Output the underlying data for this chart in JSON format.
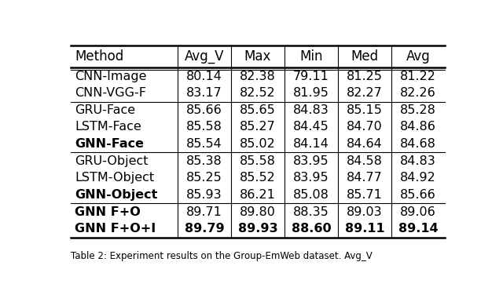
{
  "columns": [
    "Method",
    "Avg_V",
    "Max",
    "Min",
    "Med",
    "Avg"
  ],
  "rows": [
    {
      "method": "CNN-Image",
      "vals": [
        "80.14",
        "82.38",
        "79.11",
        "81.25",
        "81.22"
      ],
      "bold_method": false,
      "bold_vals": false
    },
    {
      "method": "CNN-VGG-F",
      "vals": [
        "83.17",
        "82.52",
        "81.95",
        "82.27",
        "82.26"
      ],
      "bold_method": false,
      "bold_vals": false
    },
    {
      "method": "GRU-Face",
      "vals": [
        "85.66",
        "85.65",
        "84.83",
        "85.15",
        "85.28"
      ],
      "bold_method": false,
      "bold_vals": false
    },
    {
      "method": "LSTM-Face",
      "vals": [
        "85.58",
        "85.27",
        "84.45",
        "84.70",
        "84.86"
      ],
      "bold_method": false,
      "bold_vals": false
    },
    {
      "method": "GNN-Face",
      "vals": [
        "85.54",
        "85.02",
        "84.14",
        "84.64",
        "84.68"
      ],
      "bold_method": true,
      "bold_vals": false
    },
    {
      "method": "GRU-Object",
      "vals": [
        "85.38",
        "85.58",
        "83.95",
        "84.58",
        "84.83"
      ],
      "bold_method": false,
      "bold_vals": false
    },
    {
      "method": "LSTM-Object",
      "vals": [
        "85.25",
        "85.52",
        "83.95",
        "84.77",
        "84.92"
      ],
      "bold_method": false,
      "bold_vals": false
    },
    {
      "method": "GNN-Object",
      "vals": [
        "85.93",
        "86.21",
        "85.08",
        "85.71",
        "85.66"
      ],
      "bold_method": true,
      "bold_vals": false
    },
    {
      "method": "GNN F+O",
      "vals": [
        "89.71",
        "89.80",
        "88.35",
        "89.03",
        "89.06"
      ],
      "bold_method": true,
      "bold_vals": false
    },
    {
      "method": "GNN F+O+I",
      "vals": [
        "89.79",
        "89.93",
        "88.60",
        "89.11",
        "89.14"
      ],
      "bold_method": true,
      "bold_vals": true
    }
  ],
  "group_separators_after": [
    1,
    4,
    7
  ],
  "caption": "Table 2: Experiment results on the Group-EmWeb dataset. Avg_V",
  "background_color": "#ffffff",
  "text_color": "#000000",
  "font_size": 11.5,
  "header_font_size": 12
}
